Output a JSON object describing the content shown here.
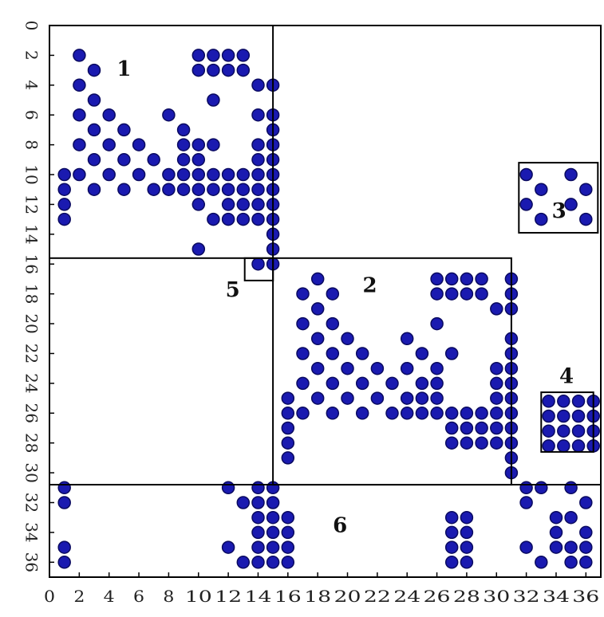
{
  "chart_data": {
    "type": "scatter",
    "title": "",
    "xlabel": "",
    "ylabel": "",
    "xlim": [
      0,
      37
    ],
    "ylim": [
      37,
      0
    ],
    "x_ticks": [
      0,
      2,
      4,
      6,
      8,
      10,
      12,
      14,
      16,
      18,
      20,
      22,
      24,
      26,
      28,
      30,
      32,
      34,
      36
    ],
    "x_tick_labels": [
      "0",
      "2",
      "4",
      "6",
      "8",
      "10",
      "12",
      "14",
      "16",
      "18",
      "20",
      "22",
      "24",
      "26",
      "28",
      "30",
      "32",
      "34",
      "36"
    ],
    "y_ticks": [
      0,
      2,
      4,
      6,
      8,
      10,
      12,
      14,
      16,
      18,
      20,
      22,
      24,
      26,
      28,
      30,
      32,
      34,
      36
    ],
    "y_tick_labels": [
      "0",
      "2",
      "4",
      "6",
      "8",
      "10",
      "12",
      "14",
      "16",
      "18",
      "20",
      "22",
      "24",
      "26",
      "28",
      "30",
      "32",
      "34",
      "36"
    ],
    "marker_color": "#1a1ab0",
    "marker_edge_color": "#0a0a60",
    "blocks": [
      {
        "label": "1",
        "x": [
          0,
          15
        ],
        "y": [
          0,
          15.6
        ],
        "label_at": [
          5,
          3
        ]
      },
      {
        "label": "2",
        "x": [
          15,
          31
        ],
        "y": [
          15.6,
          30.8
        ],
        "label_at": [
          21.5,
          17.5
        ]
      },
      {
        "label": "3",
        "x": [
          31.5,
          36.8
        ],
        "y": [
          9.2,
          13.9
        ],
        "label_at": [
          34.2,
          12.5
        ]
      },
      {
        "label": "4",
        "x": [
          33,
          36.5
        ],
        "y": [
          24.6,
          28.6
        ],
        "label_at": [
          34.7,
          23.6
        ]
      },
      {
        "label": "5",
        "x": [
          13.1,
          15
        ],
        "y": [
          15.6,
          17.1
        ],
        "label_at": [
          12.3,
          17.8
        ]
      },
      {
        "label": "6",
        "x": [
          0,
          37
        ],
        "y": [
          30.8,
          37
        ],
        "label_at": [
          19.5,
          33.6
        ]
      }
    ],
    "points": [
      [
        2,
        2
      ],
      [
        10,
        2
      ],
      [
        11,
        2
      ],
      [
        12,
        2
      ],
      [
        13,
        2
      ],
      [
        3,
        3
      ],
      [
        10,
        3
      ],
      [
        11,
        3
      ],
      [
        12,
        3
      ],
      [
        13,
        3
      ],
      [
        2,
        4
      ],
      [
        14,
        4
      ],
      [
        15,
        4
      ],
      [
        3,
        5
      ],
      [
        11,
        5
      ],
      [
        2,
        6
      ],
      [
        4,
        6
      ],
      [
        8,
        6
      ],
      [
        14,
        6
      ],
      [
        15,
        6
      ],
      [
        3,
        7
      ],
      [
        5,
        7
      ],
      [
        9,
        7
      ],
      [
        15,
        7
      ],
      [
        2,
        8
      ],
      [
        4,
        8
      ],
      [
        6,
        8
      ],
      [
        9,
        8
      ],
      [
        10,
        8
      ],
      [
        11,
        8
      ],
      [
        14,
        8
      ],
      [
        15,
        8
      ],
      [
        3,
        9
      ],
      [
        5,
        9
      ],
      [
        7,
        9
      ],
      [
        9,
        9
      ],
      [
        10,
        9
      ],
      [
        14,
        9
      ],
      [
        15,
        9
      ],
      [
        1,
        10
      ],
      [
        2,
        10
      ],
      [
        4,
        10
      ],
      [
        6,
        10
      ],
      [
        8,
        10
      ],
      [
        9,
        10
      ],
      [
        10,
        10
      ],
      [
        11,
        10
      ],
      [
        12,
        10
      ],
      [
        13,
        10
      ],
      [
        14,
        10
      ],
      [
        15,
        10
      ],
      [
        1,
        11
      ],
      [
        3,
        11
      ],
      [
        5,
        11
      ],
      [
        7,
        11
      ],
      [
        8,
        11
      ],
      [
        9,
        11
      ],
      [
        10,
        11
      ],
      [
        11,
        11
      ],
      [
        12,
        11
      ],
      [
        13,
        11
      ],
      [
        14,
        11
      ],
      [
        15,
        11
      ],
      [
        1,
        12
      ],
      [
        10,
        12
      ],
      [
        12,
        12
      ],
      [
        13,
        12
      ],
      [
        14,
        12
      ],
      [
        15,
        12
      ],
      [
        1,
        13
      ],
      [
        11,
        13
      ],
      [
        12,
        13
      ],
      [
        13,
        13
      ],
      [
        14,
        13
      ],
      [
        15,
        13
      ],
      [
        15,
        14
      ],
      [
        10,
        15
      ],
      [
        15,
        15
      ],
      [
        14,
        16
      ],
      [
        15,
        16
      ],
      [
        18,
        17
      ],
      [
        26,
        17
      ],
      [
        27,
        17
      ],
      [
        28,
        17
      ],
      [
        29,
        17
      ],
      [
        31,
        17
      ],
      [
        17,
        18
      ],
      [
        19,
        18
      ],
      [
        26,
        18
      ],
      [
        27,
        18
      ],
      [
        28,
        18
      ],
      [
        29,
        18
      ],
      [
        31,
        18
      ],
      [
        18,
        19
      ],
      [
        30,
        19
      ],
      [
        31,
        19
      ],
      [
        17,
        20
      ],
      [
        19,
        20
      ],
      [
        26,
        20
      ],
      [
        18,
        21
      ],
      [
        20,
        21
      ],
      [
        24,
        21
      ],
      [
        31,
        21
      ],
      [
        17,
        22
      ],
      [
        19,
        22
      ],
      [
        21,
        22
      ],
      [
        25,
        22
      ],
      [
        27,
        22
      ],
      [
        31,
        22
      ],
      [
        18,
        23
      ],
      [
        20,
        23
      ],
      [
        22,
        23
      ],
      [
        24,
        23
      ],
      [
        26,
        23
      ],
      [
        30,
        23
      ],
      [
        31,
        23
      ],
      [
        17,
        24
      ],
      [
        19,
        24
      ],
      [
        21,
        24
      ],
      [
        23,
        24
      ],
      [
        25,
        24
      ],
      [
        26,
        24
      ],
      [
        30,
        24
      ],
      [
        31,
        24
      ],
      [
        16,
        25
      ],
      [
        18,
        25
      ],
      [
        20,
        25
      ],
      [
        22,
        25
      ],
      [
        24,
        25
      ],
      [
        25,
        25
      ],
      [
        26,
        25
      ],
      [
        30,
        25
      ],
      [
        31,
        25
      ],
      [
        16,
        26
      ],
      [
        17,
        26
      ],
      [
        19,
        26
      ],
      [
        21,
        26
      ],
      [
        23,
        26
      ],
      [
        24,
        26
      ],
      [
        25,
        26
      ],
      [
        26,
        26
      ],
      [
        27,
        26
      ],
      [
        28,
        26
      ],
      [
        29,
        26
      ],
      [
        30,
        26
      ],
      [
        31,
        26
      ],
      [
        16,
        27
      ],
      [
        27,
        27
      ],
      [
        28,
        27
      ],
      [
        29,
        27
      ],
      [
        30,
        27
      ],
      [
        31,
        27
      ],
      [
        16,
        28
      ],
      [
        27,
        28
      ],
      [
        28,
        28
      ],
      [
        29,
        28
      ],
      [
        30,
        28
      ],
      [
        31,
        28
      ],
      [
        16,
        29
      ],
      [
        31,
        29
      ],
      [
        31,
        30
      ],
      [
        33.5,
        25.2
      ],
      [
        34.5,
        25.2
      ],
      [
        35.5,
        25.2
      ],
      [
        36.5,
        25.2
      ],
      [
        33.5,
        26.2
      ],
      [
        34.5,
        26.2
      ],
      [
        35.5,
        26.2
      ],
      [
        36.5,
        26.2
      ],
      [
        33.5,
        27.2
      ],
      [
        34.5,
        27.2
      ],
      [
        35.5,
        27.2
      ],
      [
        36.5,
        27.2
      ],
      [
        33.5,
        28.2
      ],
      [
        34.5,
        28.2
      ],
      [
        35.5,
        28.2
      ],
      [
        36.5,
        28.2
      ],
      [
        32,
        10
      ],
      [
        33,
        11
      ],
      [
        32,
        12
      ],
      [
        33,
        13
      ],
      [
        35,
        10
      ],
      [
        36,
        11
      ],
      [
        35,
        12
      ],
      [
        36,
        13
      ],
      [
        1,
        31
      ],
      [
        12,
        31
      ],
      [
        14,
        31
      ],
      [
        15,
        31
      ],
      [
        32,
        31
      ],
      [
        33,
        31
      ],
      [
        35,
        31
      ],
      [
        1,
        32
      ],
      [
        13,
        32
      ],
      [
        14,
        32
      ],
      [
        15,
        32
      ],
      [
        32,
        32
      ],
      [
        36,
        32
      ],
      [
        14,
        33
      ],
      [
        15,
        33
      ],
      [
        16,
        33
      ],
      [
        27,
        33
      ],
      [
        28,
        33
      ],
      [
        34,
        33
      ],
      [
        35,
        33
      ],
      [
        14,
        34
      ],
      [
        15,
        34
      ],
      [
        16,
        34
      ],
      [
        27,
        34
      ],
      [
        28,
        34
      ],
      [
        34,
        34
      ],
      [
        36,
        34
      ],
      [
        1,
        35
      ],
      [
        12,
        35
      ],
      [
        14,
        35
      ],
      [
        15,
        35
      ],
      [
        16,
        35
      ],
      [
        27,
        35
      ],
      [
        28,
        35
      ],
      [
        32,
        35
      ],
      [
        34,
        35
      ],
      [
        35,
        35
      ],
      [
        36,
        35
      ],
      [
        1,
        36
      ],
      [
        13,
        36
      ],
      [
        14,
        36
      ],
      [
        15,
        36
      ],
      [
        16,
        36
      ],
      [
        27,
        36
      ],
      [
        28,
        36
      ],
      [
        33,
        36
      ],
      [
        35,
        36
      ],
      [
        36,
        36
      ]
    ]
  }
}
